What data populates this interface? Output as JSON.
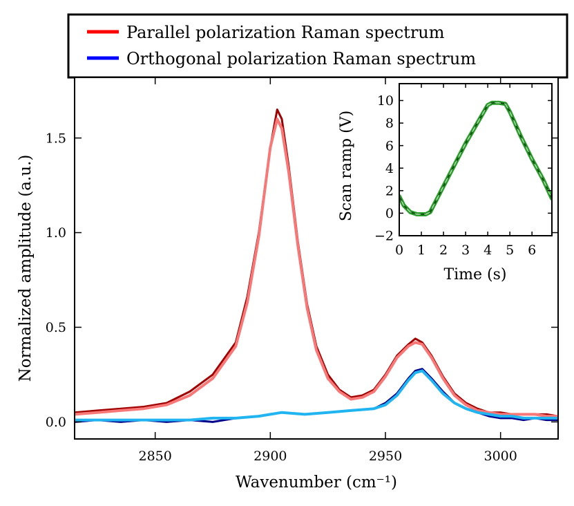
{
  "legend": {
    "placement": "top",
    "entries": [
      {
        "label": "Parallel polarization Raman spectrum",
        "color": "#ff0000"
      },
      {
        "label": "Orthogonal polarization Raman spectrum",
        "color": "#0000ff"
      }
    ]
  },
  "chart_data": [
    {
      "type": "line",
      "xlabel": "Wavenumber (cm⁻¹)",
      "ylabel": "Normalized amplitude (a.u.)",
      "xlim": [
        2815,
        3025
      ],
      "ylim": [
        -0.09,
        1.82
      ],
      "x_ticks": [
        2850,
        2900,
        2950,
        3000
      ],
      "y_ticks": [
        0.0,
        0.5,
        1.0,
        1.5
      ],
      "x_tick_labels": [
        "2850",
        "2900",
        "2950",
        "3000"
      ],
      "y_tick_labels": [
        "0.0",
        "0.5",
        "1.0",
        "1.5"
      ],
      "grid": false,
      "series": [
        {
          "name": "Parallel polarization Raman spectrum",
          "role": "raw",
          "color": "#a00000",
          "x": [
            2815,
            2825,
            2835,
            2845,
            2855,
            2865,
            2875,
            2885,
            2890,
            2895,
            2900,
            2903,
            2905,
            2908,
            2912,
            2916,
            2920,
            2925,
            2930,
            2935,
            2940,
            2945,
            2950,
            2955,
            2960,
            2963,
            2966,
            2970,
            2975,
            2980,
            2985,
            2990,
            2995,
            3000,
            3005,
            3010,
            3015,
            3020,
            3025
          ],
          "y": [
            0.05,
            0.06,
            0.07,
            0.08,
            0.1,
            0.16,
            0.25,
            0.42,
            0.66,
            1.0,
            1.45,
            1.65,
            1.6,
            1.35,
            0.95,
            0.62,
            0.4,
            0.25,
            0.17,
            0.13,
            0.14,
            0.17,
            0.25,
            0.35,
            0.41,
            0.44,
            0.42,
            0.35,
            0.24,
            0.15,
            0.1,
            0.07,
            0.05,
            0.05,
            0.04,
            0.04,
            0.04,
            0.04,
            0.03
          ]
        },
        {
          "name": "Parallel polarization Raman spectrum",
          "role": "fit",
          "color": "#f87878",
          "x": [
            2815,
            2825,
            2835,
            2845,
            2855,
            2865,
            2875,
            2885,
            2890,
            2895,
            2900,
            2903,
            2905,
            2908,
            2912,
            2916,
            2920,
            2925,
            2930,
            2935,
            2940,
            2945,
            2950,
            2955,
            2960,
            2963,
            2966,
            2970,
            2975,
            2980,
            2985,
            2990,
            2995,
            3000,
            3005,
            3010,
            3015,
            3020,
            3025
          ],
          "y": [
            0.04,
            0.05,
            0.06,
            0.07,
            0.09,
            0.14,
            0.23,
            0.4,
            0.63,
            0.98,
            1.45,
            1.6,
            1.55,
            1.32,
            0.93,
            0.6,
            0.38,
            0.23,
            0.16,
            0.12,
            0.13,
            0.16,
            0.24,
            0.34,
            0.4,
            0.42,
            0.41,
            0.34,
            0.23,
            0.14,
            0.09,
            0.06,
            0.05,
            0.04,
            0.04,
            0.04,
            0.04,
            0.03,
            0.03
          ]
        },
        {
          "name": "Orthogonal polarization Raman spectrum",
          "role": "raw",
          "color": "#00008c",
          "x": [
            2815,
            2825,
            2835,
            2845,
            2855,
            2865,
            2875,
            2885,
            2895,
            2905,
            2915,
            2925,
            2935,
            2945,
            2950,
            2955,
            2960,
            2963,
            2966,
            2970,
            2975,
            2980,
            2985,
            2990,
            2995,
            3000,
            3005,
            3010,
            3015,
            3020,
            3025
          ],
          "y": [
            0.0,
            0.01,
            0.0,
            0.01,
            0.0,
            0.01,
            0.0,
            0.02,
            0.03,
            0.05,
            0.04,
            0.05,
            0.06,
            0.07,
            0.1,
            0.15,
            0.23,
            0.27,
            0.28,
            0.23,
            0.16,
            0.1,
            0.07,
            0.05,
            0.03,
            0.02,
            0.02,
            0.01,
            0.02,
            0.01,
            0.01
          ]
        },
        {
          "name": "Orthogonal polarization Raman spectrum",
          "role": "fit",
          "color": "#20b4f0",
          "x": [
            2815,
            2825,
            2835,
            2845,
            2855,
            2865,
            2875,
            2885,
            2895,
            2905,
            2915,
            2925,
            2935,
            2945,
            2950,
            2955,
            2960,
            2963,
            2966,
            2970,
            2975,
            2980,
            2985,
            2990,
            2995,
            3000,
            3005,
            3010,
            3015,
            3020,
            3025
          ],
          "y": [
            0.01,
            0.01,
            0.01,
            0.01,
            0.01,
            0.01,
            0.02,
            0.02,
            0.03,
            0.05,
            0.04,
            0.05,
            0.06,
            0.07,
            0.09,
            0.14,
            0.22,
            0.26,
            0.27,
            0.22,
            0.15,
            0.1,
            0.07,
            0.05,
            0.04,
            0.03,
            0.03,
            0.02,
            0.02,
            0.02,
            0.02
          ]
        }
      ]
    },
    {
      "type": "line",
      "placement": "inset top-right",
      "xlabel": "Time (s)",
      "ylabel": "Scan ramp (V)",
      "xlim": [
        0,
        6.9
      ],
      "ylim": [
        -2,
        11.5
      ],
      "x_ticks": [
        0,
        1,
        2,
        3,
        4,
        5,
        6
      ],
      "y_ticks": [
        -2,
        0,
        2,
        4,
        6,
        8,
        10
      ],
      "x_tick_labels": [
        "0",
        "1",
        "2",
        "3",
        "4",
        "5",
        "6"
      ],
      "y_tick_labels": [
        "−2",
        "0",
        "2",
        "4",
        "6",
        "8",
        "10"
      ],
      "grid": false,
      "series": [
        {
          "color": "#2ea02e",
          "x": [
            0,
            0.2,
            0.5,
            0.8,
            1.0,
            1.2,
            1.4,
            2.0,
            3.0,
            4.0,
            4.2,
            4.5,
            4.8,
            5.0,
            5.5,
            6.0,
            6.5,
            6.9
          ],
          "y": [
            1.5,
            0.7,
            0.1,
            -0.1,
            -0.1,
            -0.1,
            0.1,
            2.4,
            6.2,
            9.6,
            9.8,
            9.8,
            9.7,
            9.0,
            6.8,
            4.8,
            3.0,
            1.3
          ]
        }
      ]
    }
  ]
}
